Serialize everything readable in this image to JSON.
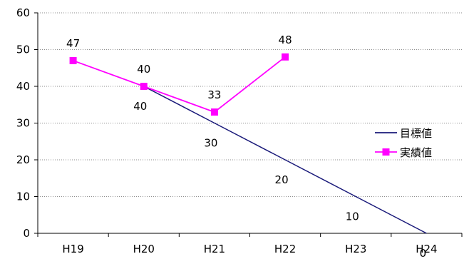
{
  "chart_data": {
    "type": "line",
    "title": "",
    "xlabel": "",
    "ylabel": "",
    "categories": [
      "H19",
      "H20",
      "H21",
      "H22",
      "H23",
      "H24"
    ],
    "ylim": [
      0,
      60
    ],
    "yticks": [
      0,
      10,
      20,
      30,
      40,
      50,
      60
    ],
    "grid": "horizontal-dotted",
    "legend_position": "right",
    "series": [
      {
        "name": "目標値",
        "color": "#1a1a7a",
        "marker": "none",
        "values": [
          null,
          40,
          30,
          20,
          10,
          0
        ],
        "labels": [
          "",
          "40",
          "30",
          "20",
          "10",
          "0"
        ],
        "label_position": "below-left"
      },
      {
        "name": "実績値",
        "color": "#ff00ff",
        "marker": "square",
        "values": [
          47,
          40,
          33,
          48,
          null,
          null
        ],
        "labels": [
          "47",
          "40",
          "33",
          "48",
          "",
          ""
        ],
        "label_position": "above"
      }
    ]
  }
}
